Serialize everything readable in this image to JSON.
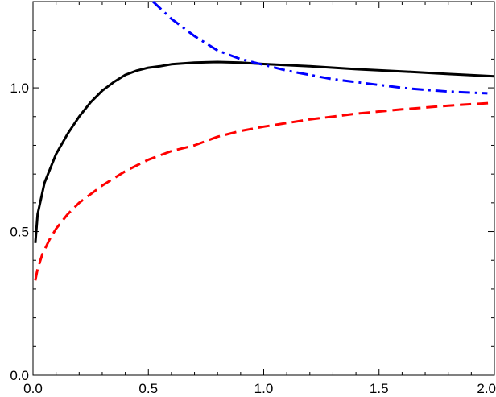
{
  "chart_data": {
    "type": "line",
    "title": "",
    "xlabel": "",
    "ylabel": "",
    "xlim": [
      0.0,
      2.0
    ],
    "ylim": [
      0.0,
      1.3
    ],
    "x_ticks": [
      0.0,
      0.5,
      1.0,
      1.5,
      2.0
    ],
    "x_tick_labels": [
      "0.0",
      "0.5",
      "1.0",
      "1.5",
      "2.0"
    ],
    "x_minor_step": 0.1,
    "y_ticks": [
      0.0,
      0.5,
      1.0
    ],
    "y_tick_labels": [
      "0.0",
      "0.5",
      "1.0"
    ],
    "y_minor_step": 0.1,
    "grid": false,
    "legend": "none",
    "series": [
      {
        "color": "#000000",
        "style": "solid",
        "x": [
          0.01,
          0.02,
          0.05,
          0.1,
          0.15,
          0.2,
          0.25,
          0.3,
          0.35,
          0.4,
          0.45,
          0.5,
          0.55,
          0.6,
          0.7,
          0.8,
          0.9,
          1.0,
          1.2,
          1.4,
          1.6,
          1.8,
          2.0
        ],
        "y": [
          0.46,
          0.56,
          0.67,
          0.77,
          0.84,
          0.9,
          0.95,
          0.99,
          1.02,
          1.045,
          1.06,
          1.07,
          1.075,
          1.082,
          1.088,
          1.09,
          1.088,
          1.083,
          1.075,
          1.065,
          1.057,
          1.048,
          1.04
        ]
      },
      {
        "color": "#ff0000",
        "style": "dashed",
        "x": [
          0.01,
          0.02,
          0.04,
          0.07,
          0.1,
          0.15,
          0.2,
          0.3,
          0.4,
          0.5,
          0.6,
          0.7,
          0.8,
          0.9,
          1.0,
          1.2,
          1.4,
          1.6,
          1.8,
          2.0
        ],
        "y": [
          0.33,
          0.37,
          0.42,
          0.47,
          0.51,
          0.56,
          0.6,
          0.66,
          0.71,
          0.75,
          0.78,
          0.8,
          0.83,
          0.85,
          0.865,
          0.89,
          0.91,
          0.925,
          0.938,
          0.948
        ]
      },
      {
        "color": "#0000ff",
        "style": "dashdot",
        "x": [
          0.52,
          0.6,
          0.7,
          0.8,
          0.9,
          1.0,
          1.1,
          1.2,
          1.3,
          1.4,
          1.5,
          1.6,
          1.7,
          1.8,
          1.9,
          1.97
        ],
        "y": [
          1.3,
          1.24,
          1.18,
          1.13,
          1.1,
          1.08,
          1.06,
          1.045,
          1.03,
          1.02,
          1.01,
          1.0,
          0.993,
          0.987,
          0.983,
          0.981
        ]
      }
    ]
  }
}
